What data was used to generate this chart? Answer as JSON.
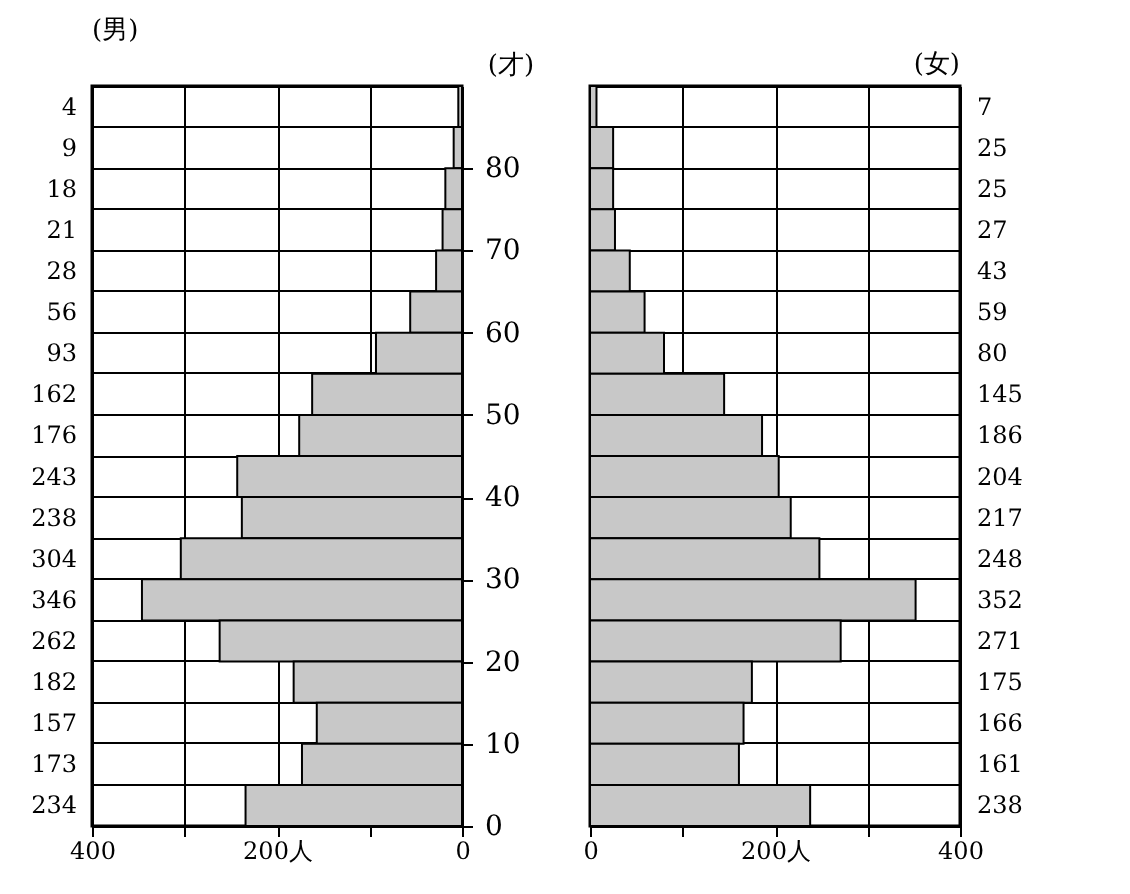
{
  "chart_data": [
    {
      "type": "bar",
      "orientation": "horizontal",
      "title": "(男)",
      "y2label": "(才)",
      "categories": [
        "4",
        "9",
        "18",
        "21",
        "28",
        "56",
        "93",
        "162",
        "176",
        "243",
        "238",
        "304",
        "346",
        "262",
        "182",
        "157",
        "173",
        "234"
      ],
      "values": [
        4,
        9,
        18,
        21,
        28,
        56,
        93,
        162,
        176,
        243,
        238,
        304,
        346,
        262,
        182,
        157,
        173,
        234
      ],
      "color": "#c8c8c8",
      "grid": true,
      "xlim": [
        400,
        0
      ],
      "xticks": [
        400,
        {
          "value": 300,
          "label": null
        },
        {
          "value": 200,
          "label": "200人"
        },
        {
          "value": 100,
          "label": null
        },
        0
      ],
      "y2lim": [
        0,
        90
      ],
      "y2ticks": [
        0,
        10,
        20,
        30,
        40,
        50,
        60,
        70,
        80
      ]
    },
    {
      "type": "bar",
      "orientation": "horizontal",
      "title": "(女)",
      "categories": [
        "7",
        "25",
        "25",
        "27",
        "43",
        "59",
        "80",
        "145",
        "186",
        "204",
        "217",
        "248",
        "352",
        "271",
        "175",
        "166",
        "161",
        "238"
      ],
      "values": [
        7,
        25,
        25,
        27,
        43,
        59,
        80,
        145,
        186,
        204,
        217,
        248,
        352,
        271,
        175,
        166,
        161,
        238
      ],
      "color": "#c8c8c8",
      "grid": true,
      "xlim": [
        0,
        400
      ],
      "xticks": [
        0,
        {
          "value": 100,
          "label": null
        },
        {
          "value": 200,
          "label": "200人"
        },
        {
          "value": 300,
          "label": null
        },
        400
      ]
    }
  ]
}
